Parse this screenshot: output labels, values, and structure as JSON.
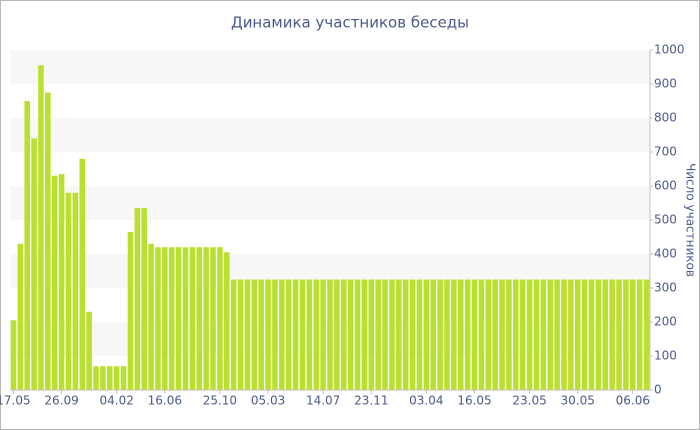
{
  "chart_data": {
    "type": "bar",
    "title": "Динамика участников беседы",
    "y_label": "Число участников",
    "categories": [
      "17.05",
      null,
      null,
      null,
      null,
      null,
      null,
      "26.09",
      null,
      null,
      null,
      null,
      null,
      null,
      null,
      "04.02",
      null,
      null,
      null,
      null,
      null,
      null,
      "16.06",
      null,
      null,
      null,
      null,
      null,
      null,
      null,
      "25.10",
      null,
      null,
      null,
      null,
      null,
      null,
      "05.03",
      null,
      null,
      null,
      null,
      null,
      null,
      null,
      "14.07",
      null,
      null,
      null,
      null,
      null,
      null,
      "23.11",
      null,
      null,
      null,
      null,
      null,
      null,
      null,
      "03.04",
      null,
      null,
      null,
      null,
      null,
      null,
      "16.05",
      null,
      null,
      null,
      null,
      null,
      null,
      null,
      "23.05",
      null,
      null,
      null,
      null,
      null,
      null,
      "30.05",
      null,
      null,
      null,
      null,
      null,
      null,
      null,
      "06.06",
      null,
      null
    ],
    "values": [
      205,
      430,
      850,
      740,
      955,
      875,
      630,
      635,
      580,
      580,
      680,
      230,
      70,
      70,
      70,
      70,
      70,
      465,
      535,
      535,
      430,
      420,
      420,
      420,
      420,
      420,
      420,
      420,
      420,
      420,
      420,
      405,
      325,
      325,
      325,
      325,
      325,
      325,
      325,
      325,
      325,
      325,
      325,
      325,
      325,
      325,
      325,
      325,
      325,
      325,
      325,
      325,
      325,
      325,
      325,
      325,
      325,
      325,
      325,
      325,
      325,
      325,
      325,
      325,
      325,
      325,
      325,
      325,
      325,
      325,
      325,
      325,
      325,
      325,
      325,
      325,
      325,
      325,
      325,
      325,
      325,
      325,
      325,
      325,
      325,
      325,
      325,
      325,
      325,
      325,
      325,
      325,
      325
    ],
    "color": "#b8e02c",
    "ylim": [
      0,
      1000
    ],
    "yticks": [
      0,
      100,
      200,
      300,
      400,
      500,
      600,
      700,
      800,
      900,
      1000
    ],
    "y_axis_side": "right",
    "alternate_bands": true
  }
}
